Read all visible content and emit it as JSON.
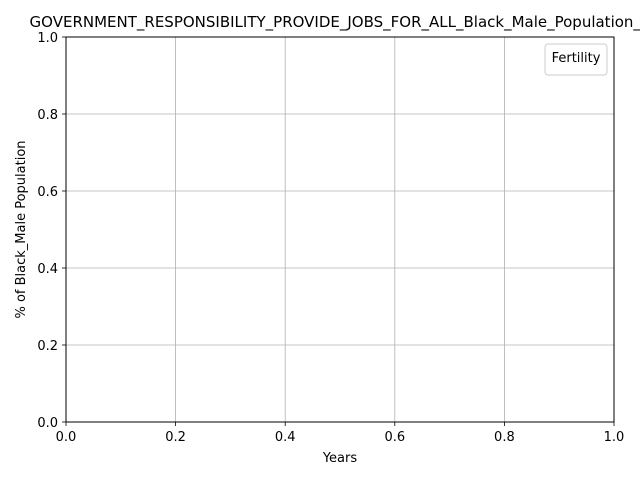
{
  "chart_data": {
    "type": "line",
    "title": "GOVERNMENT_RESPONSIBILITY_PROVIDE_JOBS_FOR_ALL_Black_Male_Population_S",
    "xlabel": "Years",
    "ylabel": "% of Black_Male Population",
    "xlim": [
      0.0,
      1.0
    ],
    "ylim": [
      0.0,
      1.0
    ],
    "x_ticks": [
      "0.0",
      "0.2",
      "0.4",
      "0.6",
      "0.8",
      "1.0"
    ],
    "y_ticks": [
      "0.0",
      "0.2",
      "0.4",
      "0.6",
      "0.8",
      "1.0"
    ],
    "grid": true,
    "legend_title": "Fertility",
    "legend_position": "top-right",
    "series": []
  },
  "colors": {
    "grid": "#b0b0b0",
    "axis": "#000000",
    "background": "#ffffff",
    "legend_border": "#cccccc"
  }
}
